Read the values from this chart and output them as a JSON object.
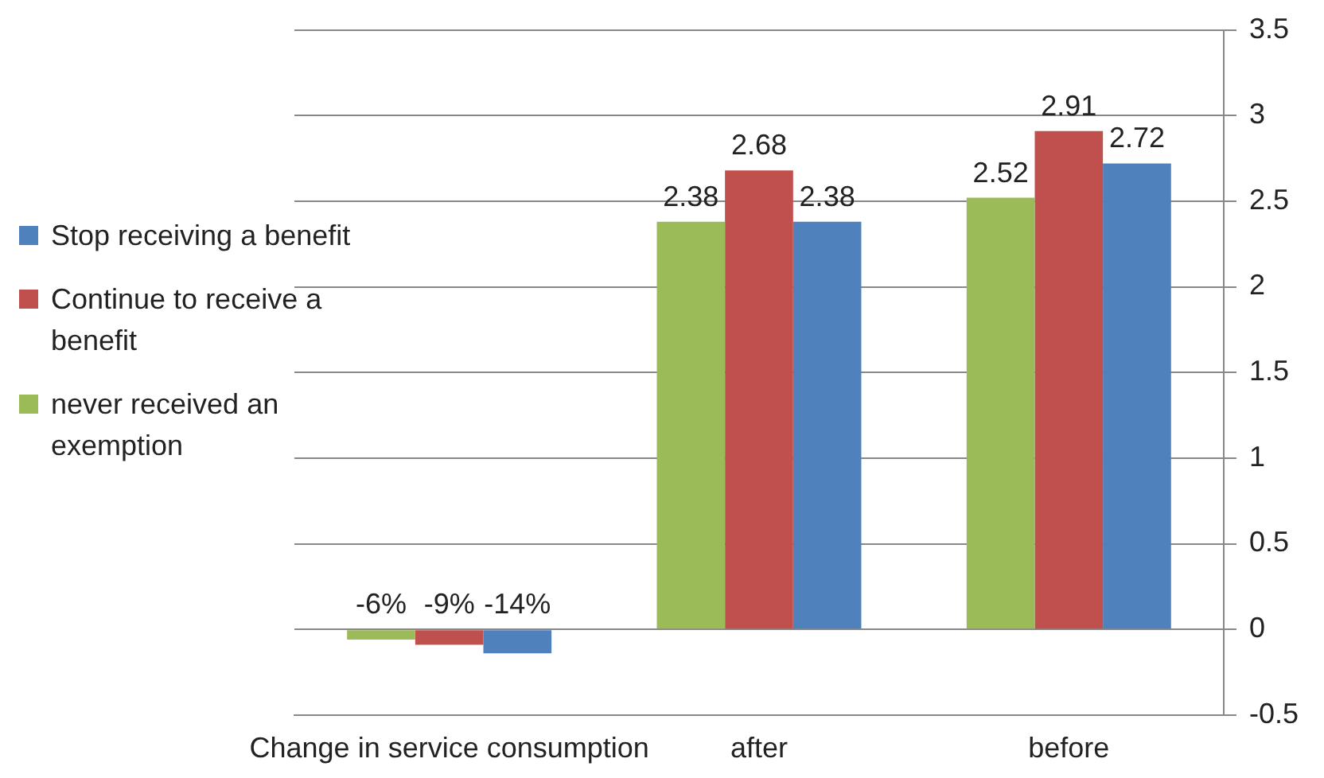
{
  "chart_data": {
    "type": "bar",
    "categories": [
      "Change in service consumption",
      "after",
      "before"
    ],
    "series": [
      {
        "name": "never received an exemption",
        "color": "#9bbb59",
        "values": [
          -0.06,
          2.38,
          2.52
        ],
        "value_labels": [
          "-6%",
          "2.38",
          "2.52"
        ]
      },
      {
        "name": "Continue to receive a benefit",
        "color": "#c0504d",
        "values": [
          -0.09,
          2.68,
          2.91
        ],
        "value_labels": [
          "-9%",
          "2.68",
          "2.91"
        ]
      },
      {
        "name": "Stop receiving a benefit",
        "color": "#4f81bd",
        "values": [
          -0.14,
          2.38,
          2.72
        ],
        "value_labels": [
          "-14%",
          "2.38",
          "2.72"
        ]
      }
    ],
    "ylim": [
      -0.5,
      3.5
    ],
    "yticks": [
      -0.5,
      0,
      0.5,
      1,
      1.5,
      2,
      2.5,
      3,
      3.5
    ],
    "grid": "y",
    "legend": "left"
  }
}
